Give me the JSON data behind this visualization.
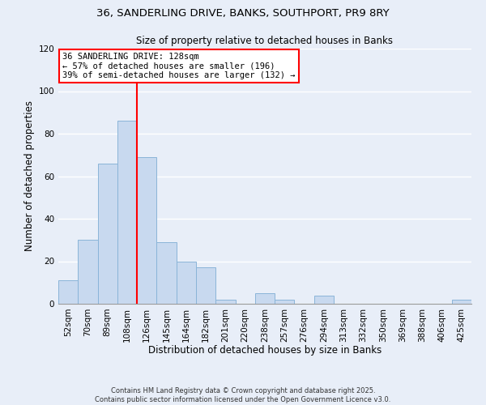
{
  "title1": "36, SANDERLING DRIVE, BANKS, SOUTHPORT, PR9 8RY",
  "title2": "Size of property relative to detached houses in Banks",
  "xlabel": "Distribution of detached houses by size in Banks",
  "ylabel": "Number of detached properties",
  "categories": [
    "52sqm",
    "70sqm",
    "89sqm",
    "108sqm",
    "126sqm",
    "145sqm",
    "164sqm",
    "182sqm",
    "201sqm",
    "220sqm",
    "238sqm",
    "257sqm",
    "276sqm",
    "294sqm",
    "313sqm",
    "332sqm",
    "350sqm",
    "369sqm",
    "388sqm",
    "406sqm",
    "425sqm"
  ],
  "values": [
    11,
    30,
    66,
    86,
    69,
    29,
    20,
    17,
    2,
    0,
    5,
    2,
    0,
    4,
    0,
    0,
    0,
    0,
    0,
    0,
    2
  ],
  "bar_color": "#c8d9ef",
  "bar_edge_color": "#8ab4d8",
  "vline_color": "red",
  "vline_x_index": 4,
  "ylim": [
    0,
    120
  ],
  "yticks": [
    0,
    20,
    40,
    60,
    80,
    100,
    120
  ],
  "annotation_title": "36 SANDERLING DRIVE: 128sqm",
  "annotation_line1": "← 57% of detached houses are smaller (196)",
  "annotation_line2": "39% of semi-detached houses are larger (132) →",
  "annotation_box_color": "white",
  "annotation_box_edge": "red",
  "footer1": "Contains HM Land Registry data © Crown copyright and database right 2025.",
  "footer2": "Contains public sector information licensed under the Open Government Licence v3.0.",
  "background_color": "#e8eef8",
  "grid_color": "white"
}
